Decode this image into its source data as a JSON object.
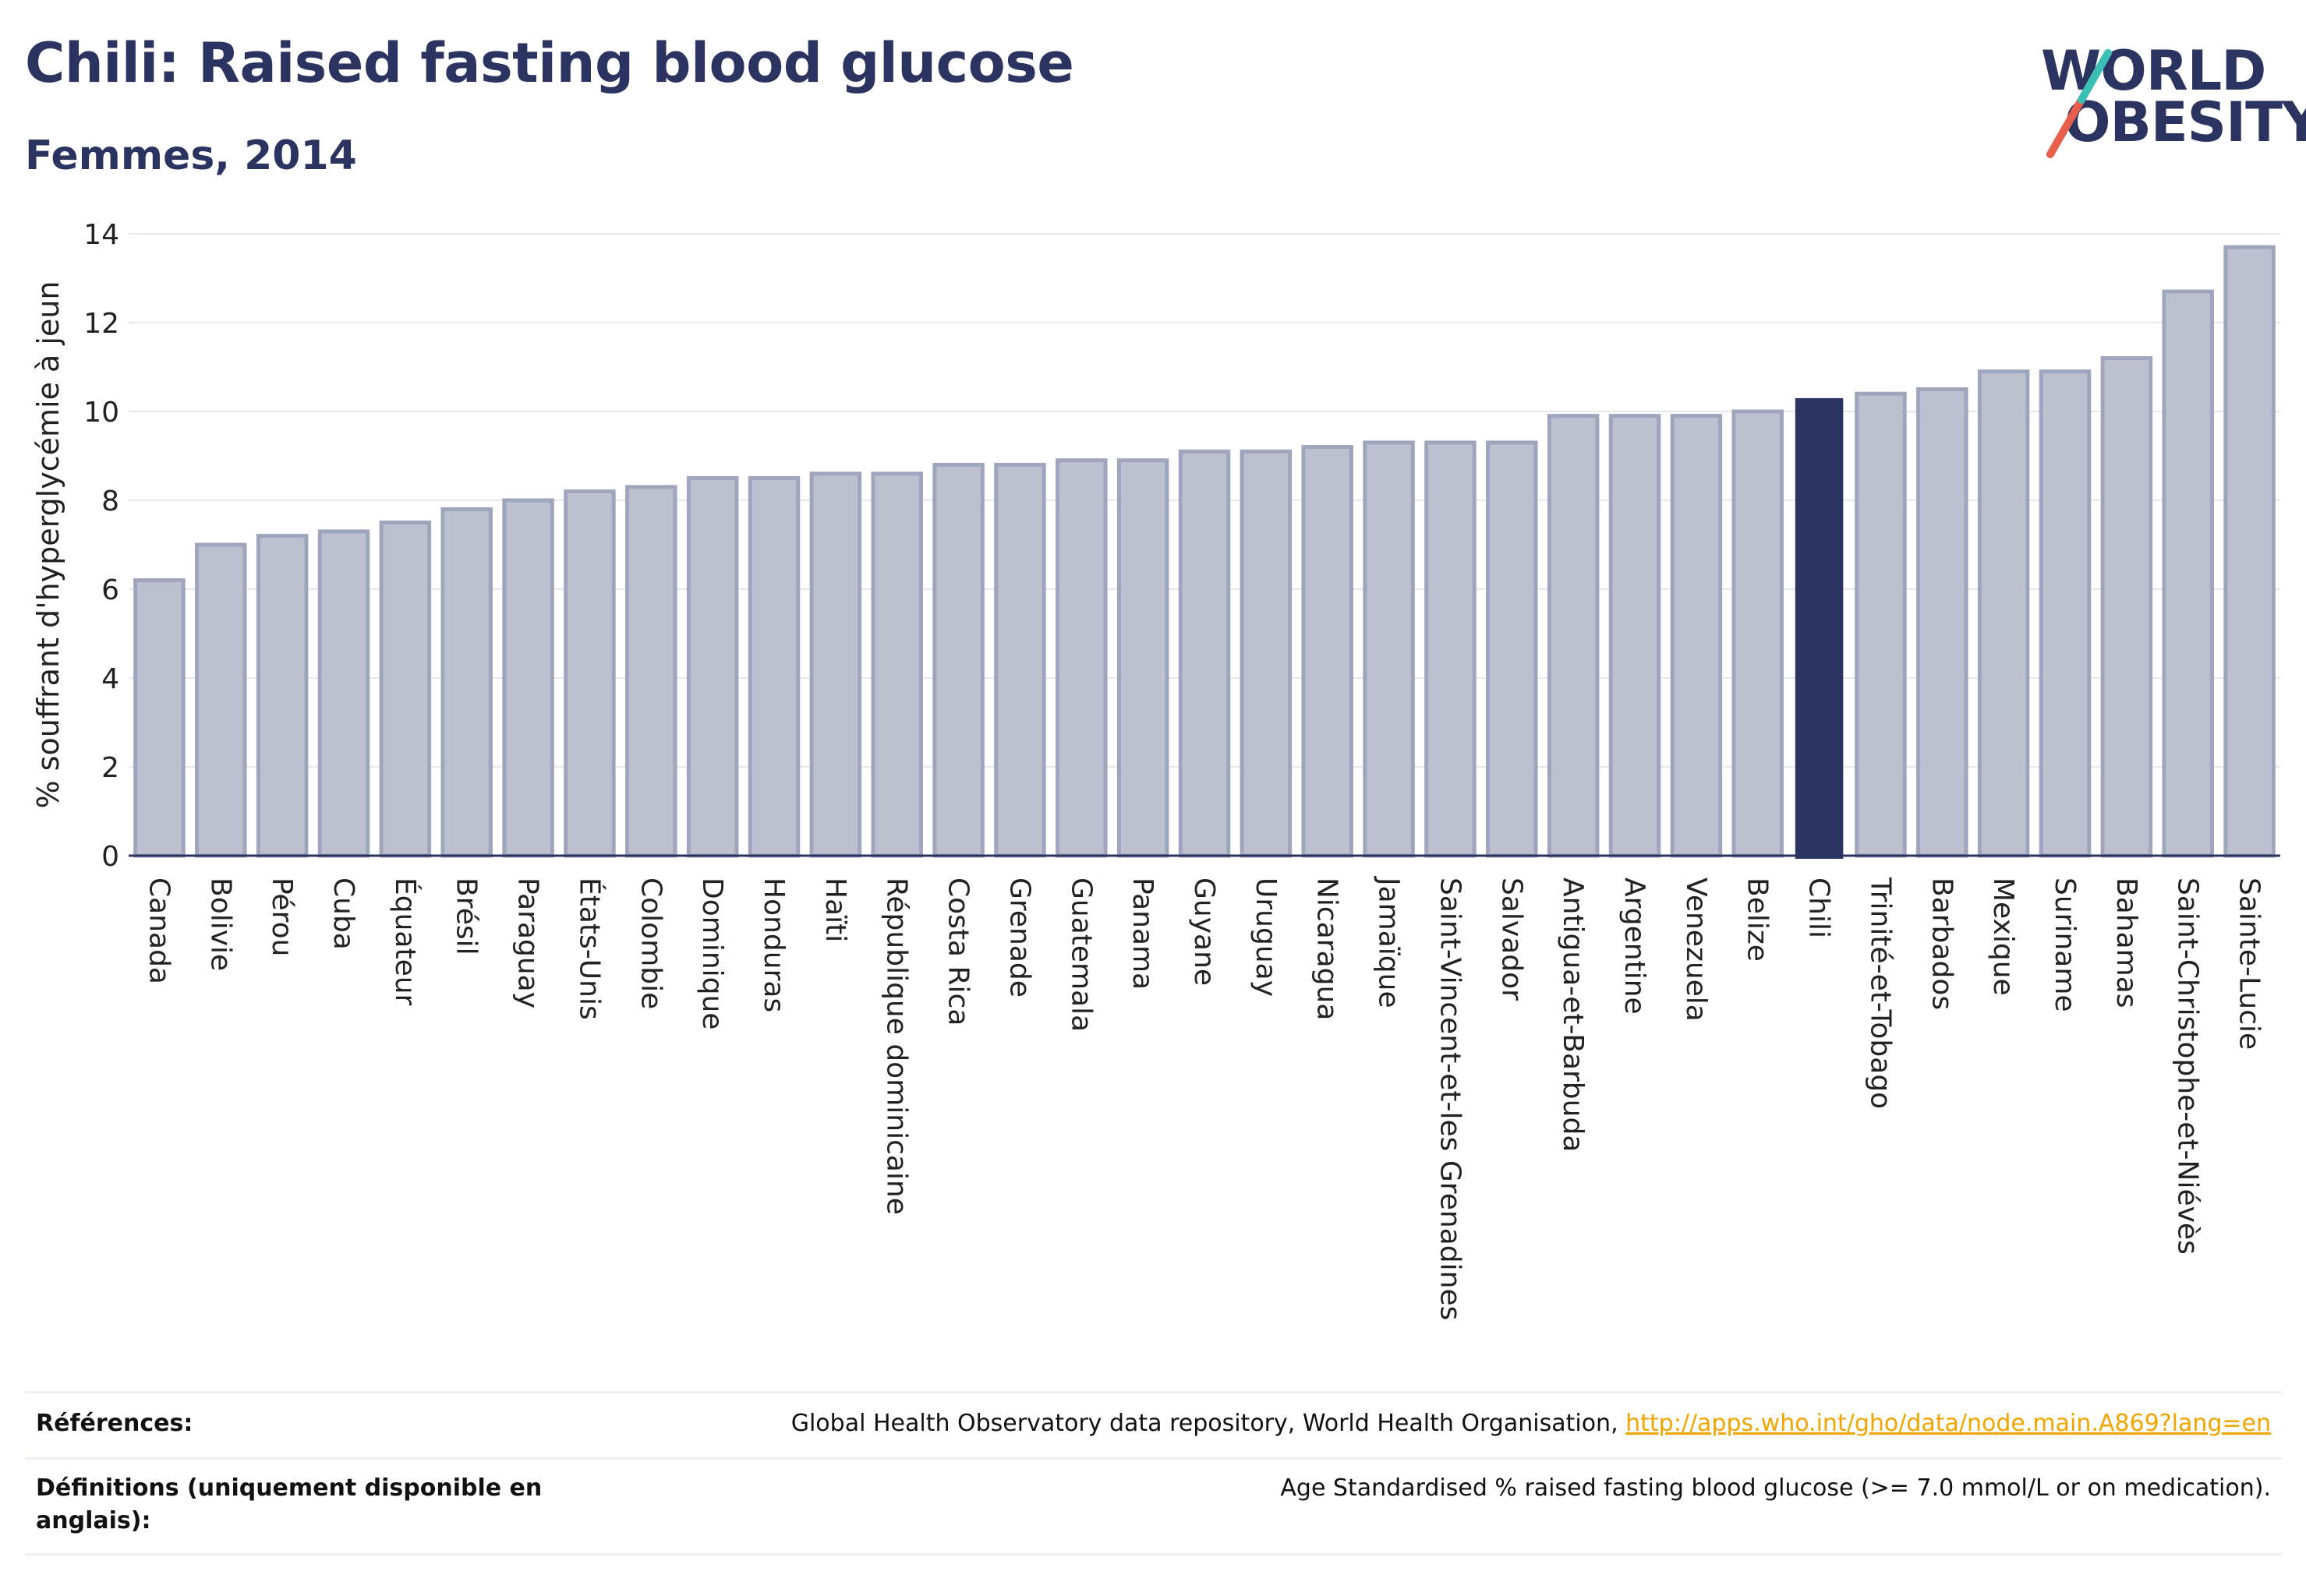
{
  "header": {
    "title": "Chili: Raised fasting blood glucose",
    "subtitle": "Femmes, 2014"
  },
  "logo": {
    "line1": "WORLD",
    "line2": "OBESITY",
    "accent_teal": "#3bbfb4",
    "accent_red": "#e8604c"
  },
  "colors": {
    "bar_fill": "#bdc1cf",
    "bar_stroke": "#9fa5bd",
    "highlight": "#2b3460",
    "grid": "#e6e8ef",
    "text": "#2b3460"
  },
  "chart_data": {
    "type": "bar",
    "ylabel": "% souffrant d'hyperglycémie à jeun",
    "ylim": [
      0,
      14
    ],
    "yticks": [
      0,
      2,
      4,
      6,
      8,
      10,
      12,
      14
    ],
    "grid": true,
    "highlight": "Chili",
    "categories": [
      "Canada",
      "Bolivie",
      "Pérou",
      "Cuba",
      "Équateur",
      "Brésil",
      "Paraguay",
      "États-Unis",
      "Colombie",
      "Dominique",
      "Honduras",
      "Haïti",
      "République dominicaine",
      "Costa Rica",
      "Grenade",
      "Guatemala",
      "Panama",
      "Guyane",
      "Uruguay",
      "Nicaragua",
      "Jamaïque",
      "Saint-Vincent-et-les Grenadines",
      "Salvador",
      "Antigua-et-Barbuda",
      "Argentine",
      "Venezuela",
      "Belize",
      "Chili",
      "Trinité-et-Tobago",
      "Barbados",
      "Mexique",
      "Suriname",
      "Bahamas",
      "Saint-Christophe-et-Niévès",
      "Sainte-Lucie"
    ],
    "values": [
      6.2,
      7.0,
      7.2,
      7.3,
      7.5,
      7.8,
      8.0,
      8.2,
      8.3,
      8.5,
      8.5,
      8.6,
      8.6,
      8.8,
      8.8,
      8.9,
      8.9,
      9.1,
      9.1,
      9.2,
      9.3,
      9.3,
      9.3,
      9.9,
      9.9,
      9.9,
      10.0,
      10.3,
      10.4,
      10.5,
      10.9,
      10.9,
      11.2,
      12.7,
      13.7
    ]
  },
  "references": {
    "label": "Références:",
    "text": "Global Health Observatory data repository, World Health Organisation, ",
    "link": "http://apps.who.int/gho/data/node.main.A869?lang=en"
  },
  "definitions": {
    "label": "Définitions (uniquement disponible en anglais):",
    "text": "Age Standardised % raised fasting blood glucose (>= 7.0 mmol/L or on medication)."
  }
}
